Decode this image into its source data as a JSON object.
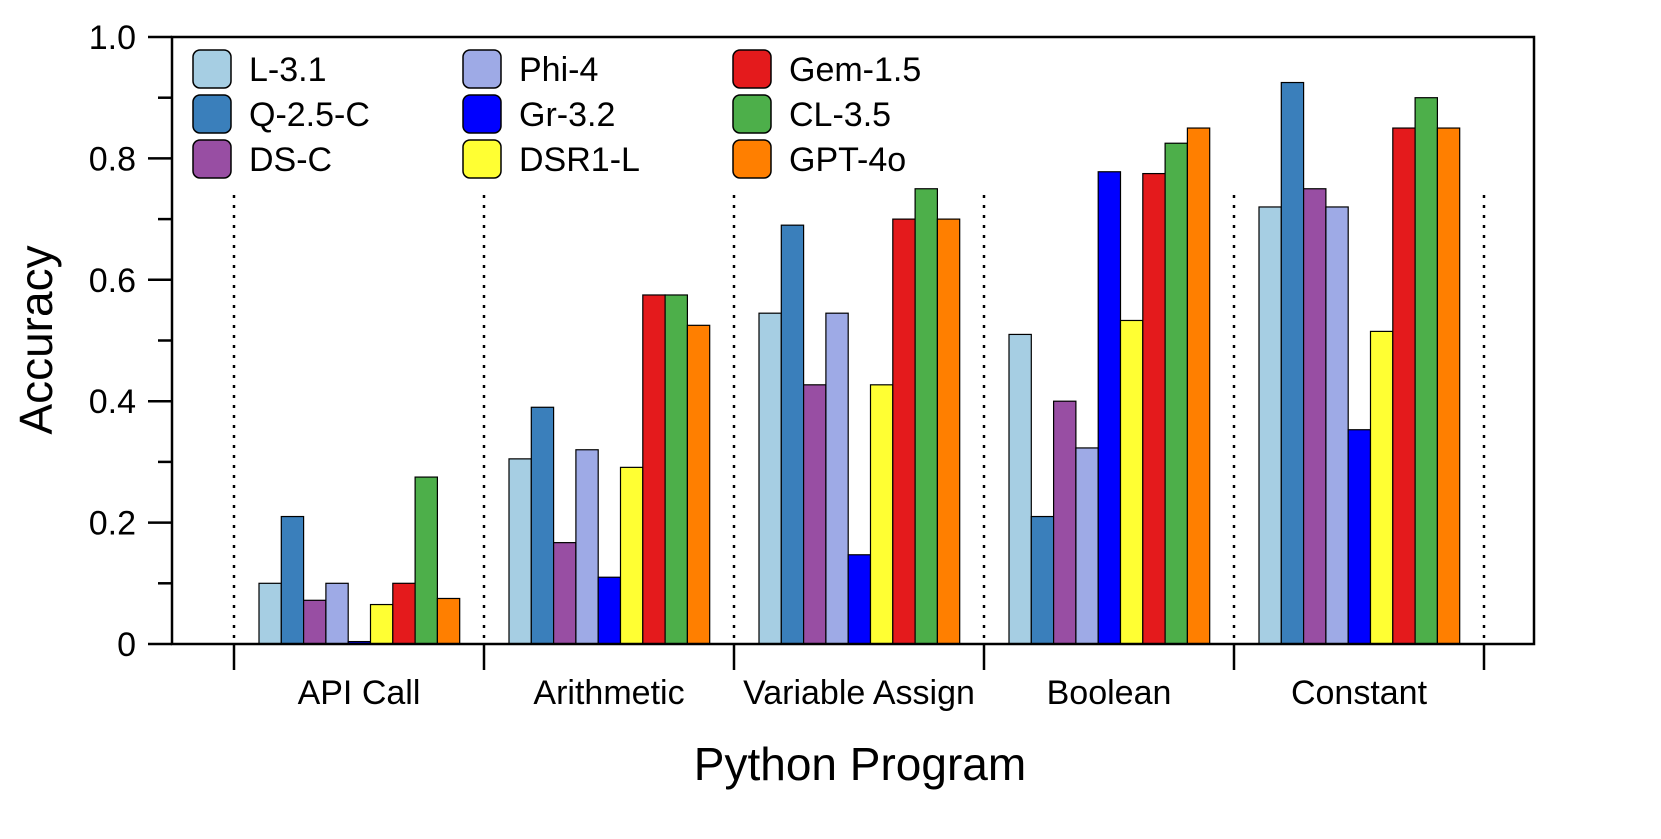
{
  "chart_data": {
    "type": "bar",
    "title": "",
    "xlabel": "Python Program",
    "ylabel": "Accuracy",
    "ylim": [
      0,
      1.0
    ],
    "yticks": [
      {
        "value": 0,
        "label": "0"
      },
      {
        "value": 0.2,
        "label": "0.2"
      },
      {
        "value": 0.4,
        "label": "0.4"
      },
      {
        "value": 0.6,
        "label": "0.6"
      },
      {
        "value": 0.8,
        "label": "0.8"
      },
      {
        "value": 1.0,
        "label": "1.0"
      }
    ],
    "grid": false,
    "group_separators": "dotted",
    "legend_position": "top-left",
    "legend_columns": 3,
    "categories": [
      "API Call",
      "Arithmetic",
      "Variable Assign",
      "Boolean",
      "Constant"
    ],
    "series": [
      {
        "name": "L-3.1",
        "color": "#a6cee3",
        "values": [
          0.1,
          0.305,
          0.545,
          0.51,
          0.72
        ]
      },
      {
        "name": "Q-2.5-C",
        "color": "#3a7fbb",
        "values": [
          0.21,
          0.39,
          0.69,
          0.21,
          0.925
        ]
      },
      {
        "name": "DS-C",
        "color": "#984ea3",
        "values": [
          0.072,
          0.167,
          0.427,
          0.4,
          0.75
        ]
      },
      {
        "name": "Phi-4",
        "color": "#9eaae6",
        "values": [
          0.1,
          0.32,
          0.545,
          0.323,
          0.72
        ]
      },
      {
        "name": "Gr-3.2",
        "color": "#0000ff",
        "values": [
          0.004,
          0.11,
          0.147,
          0.778,
          0.353
        ]
      },
      {
        "name": "DSR1-L",
        "color": "#ffff33",
        "values": [
          0.065,
          0.291,
          0.427,
          0.533,
          0.515
        ]
      },
      {
        "name": "Gem-1.5",
        "color": "#e41a1c",
        "values": [
          0.1,
          0.575,
          0.7,
          0.775,
          0.85
        ]
      },
      {
        "name": "CL-3.5",
        "color": "#4daf4a",
        "values": [
          0.275,
          0.575,
          0.75,
          0.825,
          0.9
        ]
      },
      {
        "name": "GPT-4o",
        "color": "#ff7f00",
        "values": [
          0.075,
          0.525,
          0.7,
          0.85,
          0.85
        ]
      }
    ]
  }
}
